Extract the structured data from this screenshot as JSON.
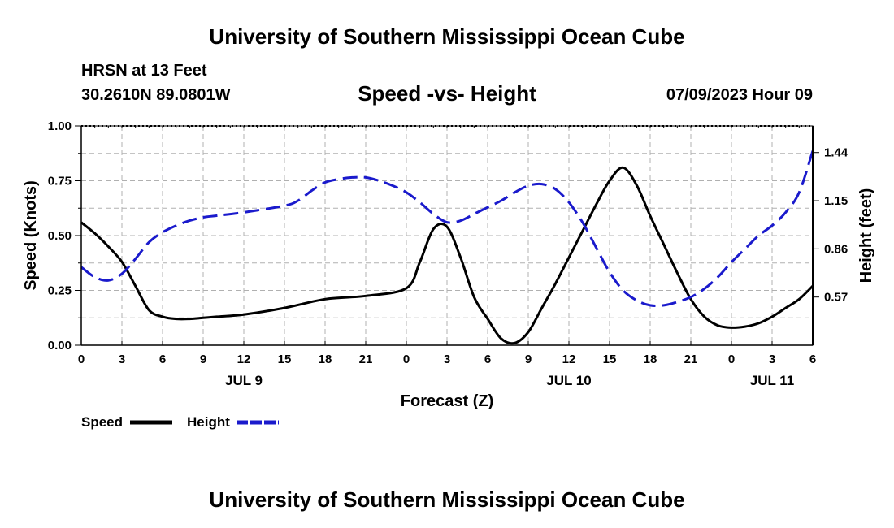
{
  "header": {
    "title": "University of Southern Mississippi Ocean Cube",
    "station": "HRSN at 13 Feet",
    "coords": "30.2610N  89.0801W",
    "subtitle": "Speed -vs- Height",
    "datetime": "07/09/2023 Hour 09"
  },
  "footer": {
    "title": "University of Southern Mississippi Ocean Cube"
  },
  "colors": {
    "speed": "#000000",
    "height": "#1a1acc",
    "grid": "#b0b0b0"
  },
  "chart_data": {
    "type": "line",
    "title": "Speed -vs- Height",
    "xlabel": "Forecast (Z)",
    "ylabel": "Speed (Knots)",
    "y2label": "Height (feet)",
    "xlim": [
      0,
      54
    ],
    "ylim": [
      0,
      1.0
    ],
    "y2lim": [
      0.28,
      1.6
    ],
    "x_ticks": [
      0,
      3,
      6,
      9,
      12,
      15,
      18,
      21,
      24,
      27,
      30,
      33,
      36,
      39,
      42,
      45,
      48,
      51,
      54
    ],
    "x_tick_labels": [
      "0",
      "3",
      "6",
      "9",
      "12",
      "15",
      "18",
      "21",
      "0",
      "3",
      "6",
      "9",
      "12",
      "15",
      "18",
      "21",
      "0",
      "3",
      "6"
    ],
    "day_labels": [
      {
        "x": 12,
        "label": "JUL 9"
      },
      {
        "x": 36,
        "label": "JUL 10"
      },
      {
        "x": 51,
        "label": "JUL 11"
      }
    ],
    "y_ticks": [
      0,
      0.25,
      0.5,
      0.75,
      1.0
    ],
    "y_tick_labels": [
      "0.00",
      "0.25",
      "0.50",
      "0.75",
      "1.00"
    ],
    "y2_ticks": [
      0.57,
      0.86,
      1.15,
      1.44
    ],
    "y2_tick_labels": [
      "0.57",
      "0.86",
      "1.15",
      "1.44"
    ],
    "legend": [
      {
        "name": "Speed",
        "style": "solid"
      },
      {
        "name": "Height",
        "style": "dashed"
      }
    ],
    "series": [
      {
        "name": "Speed",
        "axis": "left",
        "x": [
          0,
          1,
          2,
          3,
          4,
          5,
          6,
          7,
          8,
          9,
          10,
          12,
          15,
          18,
          21,
          24,
          25,
          26,
          27,
          28,
          29,
          30,
          31,
          32,
          33,
          34,
          35,
          36,
          37,
          38,
          39,
          40,
          41,
          42,
          43,
          44,
          45,
          46,
          47,
          48,
          49,
          50,
          51,
          52,
          53,
          54
        ],
        "values": [
          0.56,
          0.51,
          0.45,
          0.38,
          0.27,
          0.16,
          0.13,
          0.12,
          0.12,
          0.125,
          0.13,
          0.14,
          0.17,
          0.21,
          0.225,
          0.26,
          0.38,
          0.53,
          0.54,
          0.4,
          0.22,
          0.12,
          0.03,
          0.01,
          0.06,
          0.17,
          0.28,
          0.4,
          0.52,
          0.64,
          0.75,
          0.81,
          0.73,
          0.59,
          0.46,
          0.33,
          0.21,
          0.13,
          0.09,
          0.08,
          0.085,
          0.1,
          0.13,
          0.17,
          0.21,
          0.27
        ]
      },
      {
        "name": "Height",
        "axis": "right",
        "x": [
          0,
          1,
          2,
          3,
          4,
          5,
          6,
          7,
          8,
          9,
          10,
          12,
          15,
          16,
          17,
          18,
          19,
          20,
          21,
          22,
          23,
          24,
          25,
          26,
          27,
          28,
          29,
          30,
          31,
          32,
          33,
          34,
          35,
          36,
          37,
          38,
          39,
          40,
          41,
          42,
          43,
          44,
          45,
          46,
          47,
          48,
          49,
          50,
          51,
          52,
          53,
          54
        ],
        "values": [
          0.75,
          0.69,
          0.67,
          0.71,
          0.8,
          0.9,
          0.96,
          1.0,
          1.03,
          1.05,
          1.06,
          1.08,
          1.12,
          1.15,
          1.21,
          1.26,
          1.28,
          1.29,
          1.29,
          1.27,
          1.24,
          1.2,
          1.14,
          1.07,
          1.02,
          1.03,
          1.07,
          1.11,
          1.15,
          1.2,
          1.24,
          1.25,
          1.22,
          1.14,
          1.02,
          0.87,
          0.72,
          0.61,
          0.55,
          0.52,
          0.52,
          0.54,
          0.57,
          0.62,
          0.69,
          0.78,
          0.86,
          0.94,
          1.0,
          1.08,
          1.2,
          1.45
        ]
      }
    ]
  }
}
